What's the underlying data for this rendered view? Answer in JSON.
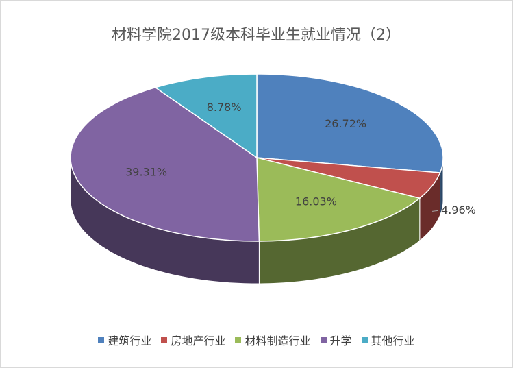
{
  "chart_data": {
    "type": "pie",
    "title": "材料学院2017级本科毕业生就业情况（2）",
    "categories": [
      "建筑行业",
      "房地产行业",
      "材料制造行业",
      "升学",
      "其他行业"
    ],
    "values": [
      26.72,
      4.96,
      16.03,
      39.31,
      8.78
    ],
    "value_labels": [
      "26.72%",
      "4.96%",
      "16.03%",
      "39.31%",
      "8.78%"
    ],
    "colors": [
      "#4f81bd",
      "#c0504d",
      "#9bbb59",
      "#8064a2",
      "#4bacc6"
    ],
    "legend": "bottom"
  }
}
